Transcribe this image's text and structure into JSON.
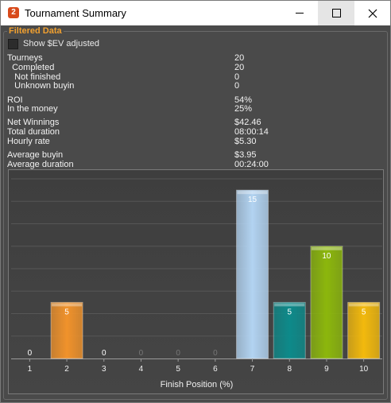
{
  "window": {
    "title": "Tournament Summary",
    "app_icon_glyph": "2"
  },
  "panel": {
    "title": "Filtered Data"
  },
  "ev_checkbox": {
    "label": "Show $EV adjusted",
    "checked": false
  },
  "stats": [
    {
      "label": "Tourneys",
      "value": "20"
    },
    {
      "label": "  Completed",
      "value": "20"
    },
    {
      "label": "   Not finished",
      "value": "0"
    },
    {
      "label": "   Unknown buyin",
      "value": "0"
    },
    {
      "label": "ROI",
      "value": "54%"
    },
    {
      "label": "In the money",
      "value": "25%"
    },
    {
      "label": "Net Winnings",
      "value": "$42.46"
    },
    {
      "label": "Total duration",
      "value": "08:00:14"
    },
    {
      "label": "Hourly rate",
      "value": "$5.30"
    },
    {
      "label": "Average buyin",
      "value": "$3.95"
    },
    {
      "label": "Average duration",
      "value": "00:24:00"
    }
  ],
  "chart_data": {
    "type": "bar",
    "xlabel": "Finish Position (%)",
    "categories": [
      "1",
      "2",
      "3",
      "4",
      "5",
      "6",
      "7",
      "8",
      "9",
      "10"
    ],
    "values": [
      0,
      5,
      0,
      0,
      0,
      0,
      15,
      5,
      10,
      5
    ],
    "colors": [
      "#f0922b",
      "#f0922b",
      "#f0922b",
      "#f0922b",
      "#f0922b",
      "#f0922b",
      "#b2d3f1",
      "#0d8a8a",
      "#8cb70c",
      "#f2b90d"
    ],
    "ylim": [
      0,
      16.5
    ],
    "grid": true
  }
}
